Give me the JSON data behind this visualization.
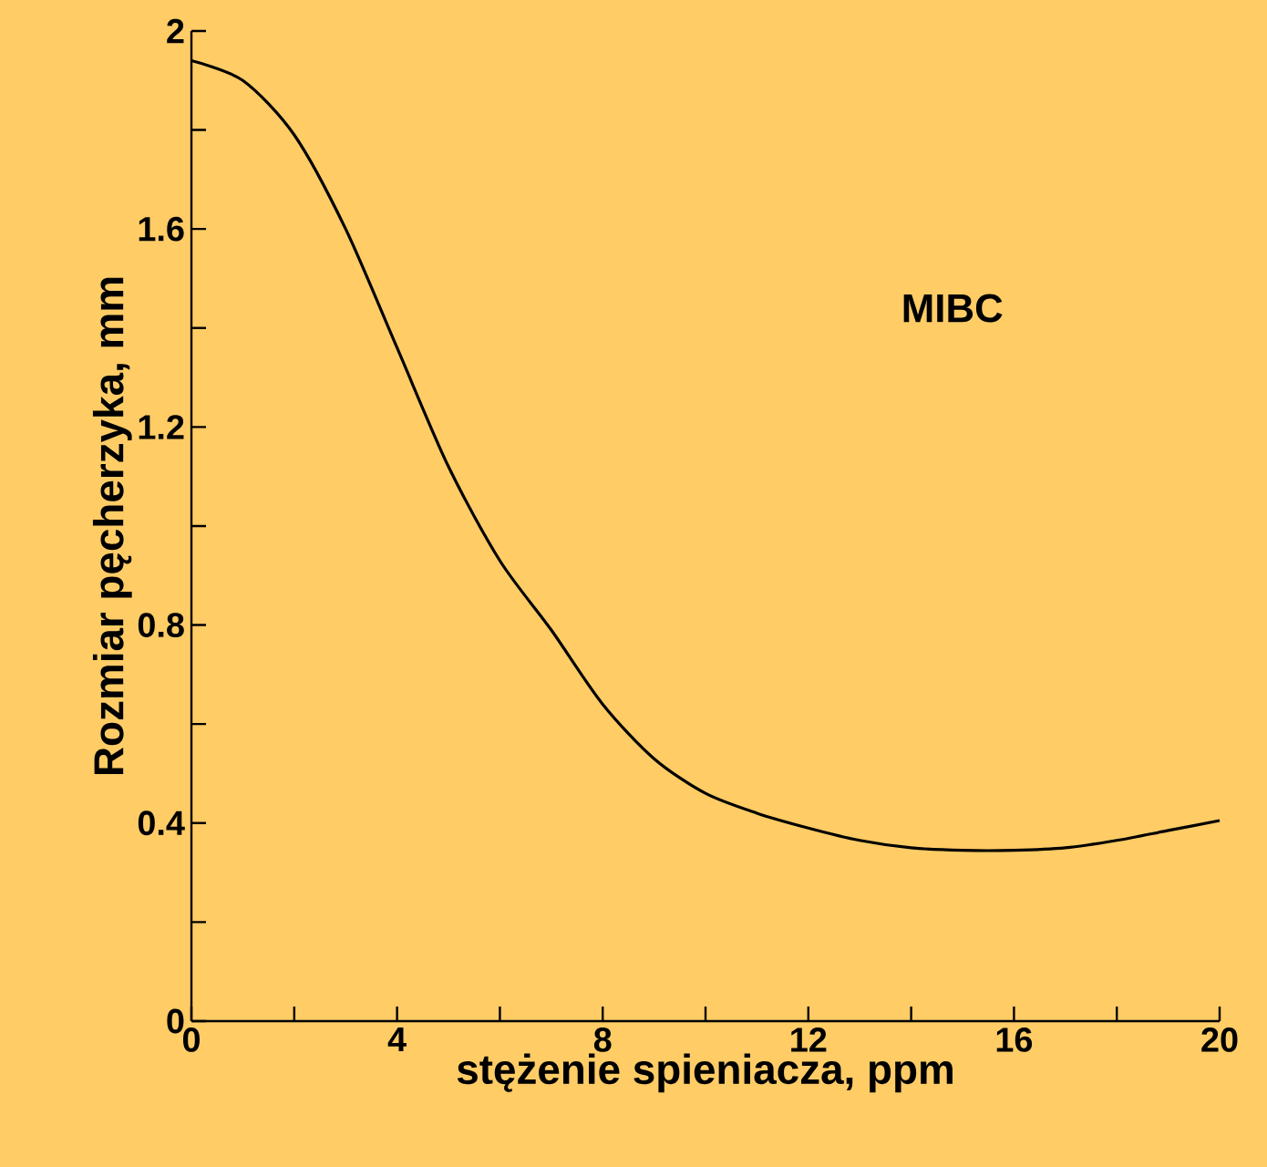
{
  "chart_data": {
    "type": "line",
    "xlabel": "stężenie spieniacza, ppm",
    "ylabel": "Rozmiar pęcherzyka, mm",
    "annotations": [
      "MIBC"
    ],
    "series": [
      {
        "color": "#000000",
        "x": [
          0,
          1,
          2,
          3,
          4,
          5,
          6,
          7,
          8,
          9,
          10,
          11,
          12,
          13,
          14,
          15,
          16,
          17,
          18,
          19,
          20
        ],
        "values": [
          1.94,
          1.9,
          1.79,
          1.6,
          1.36,
          1.12,
          0.93,
          0.79,
          0.64,
          0.53,
          0.46,
          0.42,
          0.39,
          0.365,
          0.35,
          0.345,
          0.345,
          0.35,
          0.365,
          0.385,
          0.405
        ]
      }
    ],
    "xlim": [
      0,
      20
    ],
    "ylim": [
      0,
      2
    ],
    "xticks": [
      0,
      {
        "value": 2,
        "label": null
      },
      4,
      {
        "value": 6,
        "label": null
      },
      8,
      {
        "value": 10,
        "label": null
      },
      12,
      {
        "value": 14,
        "label": null
      },
      16,
      {
        "value": 18,
        "label": null
      },
      20
    ],
    "yticks": [
      0,
      {
        "value": 0.2,
        "label": null
      },
      0.4,
      {
        "value": 0.6,
        "label": null
      },
      0.8,
      {
        "value": 1,
        "label": null
      },
      1.2,
      {
        "value": 1.4,
        "label": null
      },
      1.6,
      {
        "value": 1.8,
        "label": null
      },
      2
    ],
    "marker": "none",
    "line_style": "solid"
  }
}
